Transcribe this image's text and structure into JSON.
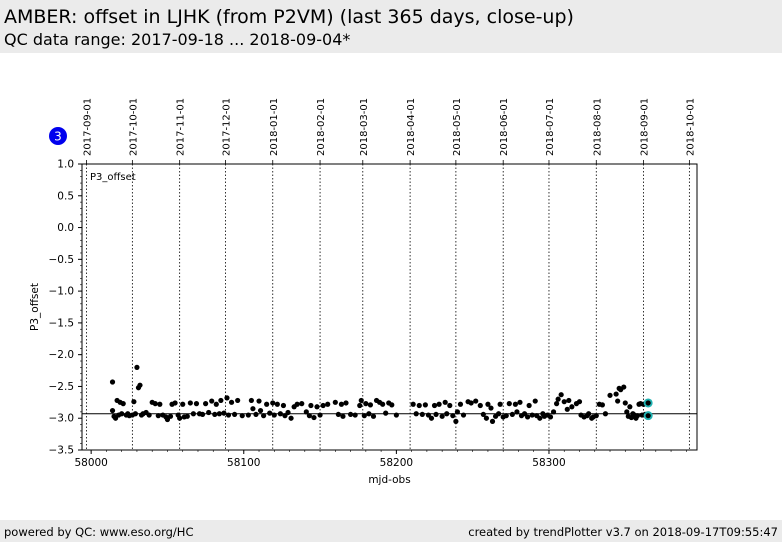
{
  "header": {
    "title": "AMBER: offset in LJHK (from P2VM) (last 365 days, close-up)",
    "subtitle": "QC data range: 2017-09-18 ... 2018-09-04*"
  },
  "footer": {
    "left": "powered by QC: www.eso.org/HC",
    "right": "created by trendPlotter v3.7 on 2018-09-17T09:55:47"
  },
  "colors": {
    "points": "#000000",
    "highlight": "#20b2b2",
    "badge": "#0000ee",
    "header_bg": "#ebebeb"
  },
  "chart_data": {
    "type": "scatter",
    "panel_label": "P3_offset",
    "badge": "3",
    "xlabel": "mjd-obs",
    "ylabel": "P3_offset",
    "xlim": [
      57994,
      58397
    ],
    "ylim": [
      -3.5,
      1.0
    ],
    "xticks": [
      58000,
      58100,
      58200,
      58300
    ],
    "yticks": [
      1.0,
      0.5,
      0.0,
      -0.5,
      -1.0,
      -1.5,
      -2.0,
      -2.5,
      -3.0,
      -3.5
    ],
    "reference_line": -2.93,
    "date_axis": [
      {
        "mjd": 57997,
        "label": "2017-09-01"
      },
      {
        "mjd": 58027,
        "label": "2017-10-01"
      },
      {
        "mjd": 58058,
        "label": "2017-11-01"
      },
      {
        "mjd": 58088,
        "label": "2017-12-01"
      },
      {
        "mjd": 58119,
        "label": "2018-01-01"
      },
      {
        "mjd": 58150,
        "label": "2018-02-01"
      },
      {
        "mjd": 58178,
        "label": "2018-03-01"
      },
      {
        "mjd": 58209,
        "label": "2018-04-01"
      },
      {
        "mjd": 58239,
        "label": "2018-05-01"
      },
      {
        "mjd": 58270,
        "label": "2018-06-01"
      },
      {
        "mjd": 58300,
        "label": "2018-07-01"
      },
      {
        "mjd": 58331,
        "label": "2018-08-01"
      },
      {
        "mjd": 58362,
        "label": "2018-09-01"
      },
      {
        "mjd": 58392,
        "label": "2018-10-01"
      }
    ],
    "points": [
      [
        58014,
        -2.43
      ],
      [
        58014,
        -2.88
      ],
      [
        58015,
        -2.97
      ],
      [
        58016,
        -3.0
      ],
      [
        58017,
        -2.72
      ],
      [
        58018,
        -2.95
      ],
      [
        58019,
        -2.75
      ],
      [
        58020,
        -2.93
      ],
      [
        58021,
        -2.77
      ],
      [
        58023,
        -2.95
      ],
      [
        58024,
        -2.93
      ],
      [
        58025,
        -2.96
      ],
      [
        58027,
        -2.95
      ],
      [
        58028,
        -2.74
      ],
      [
        58029,
        -2.93
      ],
      [
        58030,
        -2.2
      ],
      [
        58031,
        -2.52
      ],
      [
        58032,
        -2.48
      ],
      [
        58033,
        -2.95
      ],
      [
        58034,
        -2.93
      ],
      [
        58036,
        -2.91
      ],
      [
        58038,
        -2.95
      ],
      [
        58040,
        -2.75
      ],
      [
        58042,
        -2.77
      ],
      [
        58044,
        -2.96
      ],
      [
        58045,
        -2.78
      ],
      [
        58047,
        -2.95
      ],
      [
        58049,
        -2.98
      ],
      [
        58050,
        -3.02
      ],
      [
        58052,
        -2.97
      ],
      [
        58053,
        -2.78
      ],
      [
        58055,
        -2.76
      ],
      [
        58057,
        -2.95
      ],
      [
        58058,
        -3.0
      ],
      [
        58060,
        -2.78
      ],
      [
        58061,
        -2.98
      ],
      [
        58063,
        -2.97
      ],
      [
        58065,
        -2.76
      ],
      [
        58067,
        -2.93
      ],
      [
        58069,
        -2.77
      ],
      [
        58071,
        -2.93
      ],
      [
        58073,
        -2.94
      ],
      [
        58075,
        -2.77
      ],
      [
        58077,
        -2.91
      ],
      [
        58079,
        -2.73
      ],
      [
        58081,
        -2.94
      ],
      [
        58082,
        -2.78
      ],
      [
        58084,
        -2.93
      ],
      [
        58085,
        -2.72
      ],
      [
        58087,
        -2.92
      ],
      [
        58089,
        -2.68
      ],
      [
        58090,
        -2.95
      ],
      [
        58092,
        -2.75
      ],
      [
        58094,
        -2.94
      ],
      [
        58096,
        -2.72
      ],
      [
        58099,
        -2.96
      ],
      [
        58103,
        -2.95
      ],
      [
        58105,
        -2.72
      ],
      [
        58106,
        -2.85
      ],
      [
        58108,
        -2.94
      ],
      [
        58110,
        -2.73
      ],
      [
        58111,
        -2.88
      ],
      [
        58113,
        -2.96
      ],
      [
        58115,
        -2.78
      ],
      [
        58117,
        -2.92
      ],
      [
        58119,
        -2.76
      ],
      [
        58120,
        -2.95
      ],
      [
        58122,
        -2.78
      ],
      [
        58124,
        -2.93
      ],
      [
        58126,
        -2.8
      ],
      [
        58127,
        -2.96
      ],
      [
        58129,
        -2.91
      ],
      [
        58131,
        -3.0
      ],
      [
        58133,
        -2.82
      ],
      [
        58135,
        -2.78
      ],
      [
        58138,
        -2.77
      ],
      [
        58141,
        -2.9
      ],
      [
        58143,
        -2.96
      ],
      [
        58144,
        -2.8
      ],
      [
        58146,
        -2.99
      ],
      [
        58148,
        -2.82
      ],
      [
        58150,
        -2.95
      ],
      [
        58152,
        -2.8
      ],
      [
        58155,
        -2.78
      ],
      [
        58160,
        -2.75
      ],
      [
        58162,
        -2.94
      ],
      [
        58164,
        -2.78
      ],
      [
        58165,
        -2.97
      ],
      [
        58167,
        -2.76
      ],
      [
        58170,
        -2.94
      ],
      [
        58173,
        -2.95
      ],
      [
        58176,
        -2.8
      ],
      [
        58177,
        -2.72
      ],
      [
        58179,
        -2.96
      ],
      [
        58180,
        -2.77
      ],
      [
        58182,
        -2.93
      ],
      [
        58183,
        -2.79
      ],
      [
        58185,
        -2.97
      ],
      [
        58187,
        -2.72
      ],
      [
        58189,
        -2.75
      ],
      [
        58191,
        -2.78
      ],
      [
        58193,
        -2.92
      ],
      [
        58195,
        -2.76
      ],
      [
        58197,
        -2.79
      ],
      [
        58200,
        -2.95
      ],
      [
        58211,
        -2.78
      ],
      [
        58213,
        -2.93
      ],
      [
        58215,
        -2.8
      ],
      [
        58217,
        -2.94
      ],
      [
        58219,
        -2.79
      ],
      [
        58221,
        -2.95
      ],
      [
        58223,
        -3.0
      ],
      [
        58225,
        -2.8
      ],
      [
        58226,
        -2.94
      ],
      [
        58228,
        -2.78
      ],
      [
        58230,
        -2.97
      ],
      [
        58232,
        -2.75
      ],
      [
        58233,
        -2.93
      ],
      [
        58235,
        -2.8
      ],
      [
        58237,
        -2.96
      ],
      [
        58239,
        -3.05
      ],
      [
        58240,
        -2.9
      ],
      [
        58242,
        -2.78
      ],
      [
        58244,
        -2.95
      ],
      [
        58247,
        -2.74
      ],
      [
        58249,
        -2.76
      ],
      [
        58252,
        -2.73
      ],
      [
        58255,
        -2.8
      ],
      [
        58257,
        -2.94
      ],
      [
        58259,
        -3.0
      ],
      [
        58260,
        -2.78
      ],
      [
        58262,
        -2.84
      ],
      [
        58263,
        -3.05
      ],
      [
        58265,
        -2.97
      ],
      [
        58267,
        -2.93
      ],
      [
        58268,
        -2.78
      ],
      [
        58270,
        -2.98
      ],
      [
        58272,
        -2.96
      ],
      [
        58274,
        -2.77
      ],
      [
        58276,
        -2.94
      ],
      [
        58278,
        -2.78
      ],
      [
        58279,
        -2.9
      ],
      [
        58281,
        -2.75
      ],
      [
        58282,
        -2.96
      ],
      [
        58284,
        -2.93
      ],
      [
        58286,
        -2.98
      ],
      [
        58287,
        -2.8
      ],
      [
        58289,
        -2.95
      ],
      [
        58291,
        -2.73
      ],
      [
        58292,
        -2.96
      ],
      [
        58294,
        -3.0
      ],
      [
        58296,
        -2.93
      ],
      [
        58297,
        -2.97
      ],
      [
        58299,
        -2.95
      ],
      [
        58301,
        -2.98
      ],
      [
        58303,
        -2.9
      ],
      [
        58305,
        -2.77
      ],
      [
        58306,
        -2.7
      ],
      [
        58308,
        -2.63
      ],
      [
        58310,
        -2.74
      ],
      [
        58312,
        -2.86
      ],
      [
        58313,
        -2.72
      ],
      [
        58315,
        -2.82
      ],
      [
        58318,
        -2.77
      ],
      [
        58320,
        -2.74
      ],
      [
        58321,
        -2.95
      ],
      [
        58323,
        -2.98
      ],
      [
        58325,
        -2.96
      ],
      [
        58326,
        -2.93
      ],
      [
        58328,
        -3.0
      ],
      [
        58329,
        -2.98
      ],
      [
        58331,
        -2.96
      ],
      [
        58333,
        -2.78
      ],
      [
        58335,
        -2.79
      ],
      [
        58337,
        -2.93
      ],
      [
        58340,
        -2.64
      ],
      [
        58344,
        -2.62
      ],
      [
        58345,
        -2.73
      ],
      [
        58346,
        -2.53
      ],
      [
        58347,
        -2.55
      ],
      [
        58349,
        -2.51
      ],
      [
        58350,
        -2.76
      ],
      [
        58351,
        -2.9
      ],
      [
        58352,
        -2.97
      ],
      [
        58353,
        -2.82
      ],
      [
        58354,
        -2.99
      ],
      [
        58355,
        -2.93
      ],
      [
        58356,
        -2.95
      ],
      [
        58357,
        -3.0
      ],
      [
        58358,
        -2.96
      ],
      [
        58359,
        -2.78
      ],
      [
        58360,
        -2.77
      ],
      [
        58361,
        -2.95
      ],
      [
        58362,
        -2.78
      ],
      [
        58363,
        -2.94
      ]
    ],
    "highlight_points": [
      [
        58365,
        -2.76
      ],
      [
        58365,
        -2.96
      ]
    ]
  }
}
